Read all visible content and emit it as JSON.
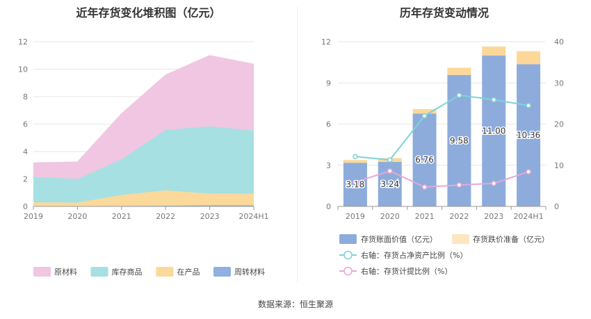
{
  "source_text": "数据来源：恒生聚源",
  "chart_data": [
    {
      "type": "area",
      "stacked": true,
      "title": "近年存货变化堆积图（亿元）",
      "categories": [
        "2019",
        "2020",
        "2021",
        "2022",
        "2023",
        "2024H1"
      ],
      "y_ticks": [
        "0",
        "2",
        "4",
        "6",
        "8",
        "10",
        "12"
      ],
      "ylim": [
        0,
        12
      ],
      "grid": true,
      "legend_position": "bottom",
      "series": [
        {
          "name": "周转材料",
          "color": "#8fb0e0",
          "values": [
            0.02,
            0.02,
            0.03,
            0.05,
            0.08,
            0.08
          ]
        },
        {
          "name": "在产品",
          "color": "#fbd99a",
          "values": [
            0.28,
            0.26,
            0.8,
            1.12,
            0.85,
            0.85
          ]
        },
        {
          "name": "库存商品",
          "color": "#a6e0e2",
          "values": [
            1.85,
            1.72,
            2.6,
            4.4,
            4.9,
            4.6
          ]
        },
        {
          "name": "原材料",
          "color": "#f0c6e2",
          "values": [
            1.03,
            1.24,
            3.33,
            4.01,
            5.17,
            4.83
          ]
        }
      ],
      "legend_order": [
        "原材料",
        "库存商品",
        "在产品",
        "周转材料"
      ]
    },
    {
      "type": "bar+line",
      "title": "历年存货变动情况",
      "categories": [
        "2019",
        "2020",
        "2021",
        "2022",
        "2023",
        "2024H1"
      ],
      "y_ticks_left": [
        "0",
        "3",
        "6",
        "9",
        "12"
      ],
      "ylim_left": [
        0,
        12
      ],
      "y_ticks_right": [
        "0",
        "10",
        "20",
        "30",
        "40"
      ],
      "ylim_right": [
        0,
        40
      ],
      "grid": true,
      "legend_position": "bottom",
      "bars": [
        {
          "name": "存货账面价值（亿元）",
          "color": "#8dacdc",
          "values": [
            3.18,
            3.24,
            6.76,
            9.58,
            11.0,
            10.36
          ],
          "labels": [
            "3.18",
            "3.24",
            "6.76",
            "9.58",
            "11.00",
            "10.36"
          ]
        },
        {
          "name": "存货跌价准备（亿元）",
          "color": "#fcd898",
          "values": [
            0.2,
            0.28,
            0.33,
            0.52,
            0.65,
            0.95
          ]
        }
      ],
      "lines": [
        {
          "name": "右轴：存货占净资产比例（%）",
          "color": "#7fd3d6",
          "values": [
            12.1,
            11.3,
            22.0,
            27.0,
            25.9,
            24.5
          ]
        },
        {
          "name": "右轴：存货计提比例（%）",
          "color": "#e6a8d6",
          "values": [
            5.9,
            8.6,
            4.7,
            5.2,
            5.6,
            8.4
          ]
        }
      ]
    }
  ]
}
